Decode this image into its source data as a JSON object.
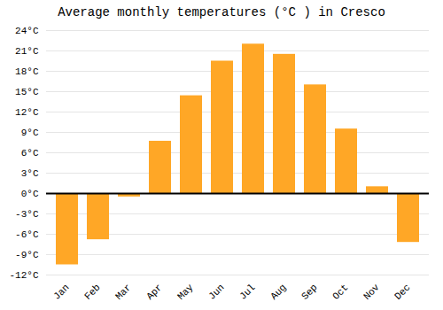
{
  "chart_data": {
    "type": "bar",
    "title": "Average monthly temperatures (°C ) in Cresco",
    "categories": [
      "Jan",
      "Feb",
      "Mar",
      "Apr",
      "May",
      "Jun",
      "Jul",
      "Aug",
      "Sep",
      "Oct",
      "Nov",
      "Dec"
    ],
    "values": [
      -10.5,
      -6.8,
      -0.5,
      7.7,
      14.4,
      19.5,
      22.0,
      20.5,
      16.0,
      9.5,
      1.0,
      -7.2
    ],
    "color": "#FFA726",
    "ylim": [
      -12,
      24
    ],
    "yticks": [
      {
        "value": -12,
        "label": "-12°C"
      },
      {
        "value": -9,
        "label": "-9°C"
      },
      {
        "value": -6,
        "label": "-6°C"
      },
      {
        "value": -3,
        "label": "-3°C"
      },
      {
        "value": 0,
        "label": "0°C"
      },
      {
        "value": 3,
        "label": "3°C"
      },
      {
        "value": 6,
        "label": "6°C"
      },
      {
        "value": 9,
        "label": "9°C"
      },
      {
        "value": 12,
        "label": "12°C"
      },
      {
        "value": 15,
        "label": "15°C"
      },
      {
        "value": 18,
        "label": "18°C"
      },
      {
        "value": 21,
        "label": "21°C"
      },
      {
        "value": 24,
        "label": "24°C"
      }
    ],
    "grid": true
  }
}
